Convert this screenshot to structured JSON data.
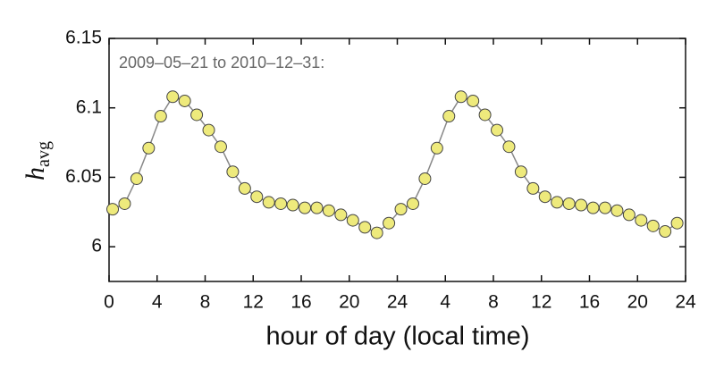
{
  "chart_data": {
    "type": "line",
    "annotation": "2009–05–21 to 2010–12–31:",
    "xlabel": "hour of day (local time)",
    "ylabel": "h",
    "ylabel_sub": "avg",
    "x": [
      0.3,
      1.3,
      2.3,
      3.3,
      4.3,
      5.3,
      6.3,
      7.3,
      8.3,
      9.3,
      10.3,
      11.3,
      12.3,
      13.3,
      14.3,
      15.3,
      16.3,
      17.3,
      18.3,
      19.3,
      20.3,
      21.3,
      22.3,
      23.3,
      24.3,
      25.3,
      26.3,
      27.3,
      28.3,
      29.3,
      30.3,
      31.3,
      32.3,
      33.3,
      34.3,
      35.3,
      36.3,
      37.3,
      38.3,
      39.3,
      40.3,
      41.3,
      42.3,
      43.3,
      44.3,
      45.3,
      46.3,
      47.3
    ],
    "values": [
      6.027,
      6.031,
      6.049,
      6.071,
      6.094,
      6.108,
      6.105,
      6.095,
      6.084,
      6.072,
      6.054,
      6.042,
      6.036,
      6.032,
      6.031,
      6.03,
      6.028,
      6.028,
      6.026,
      6.023,
      6.019,
      6.014,
      6.01,
      6.017,
      6.027,
      6.031,
      6.049,
      6.071,
      6.094,
      6.108,
      6.105,
      6.095,
      6.084,
      6.072,
      6.054,
      6.042,
      6.036,
      6.032,
      6.031,
      6.03,
      6.028,
      6.028,
      6.026,
      6.023,
      6.019,
      6.015,
      6.011,
      6.017
    ],
    "color": "#eeea7c",
    "line_color": "#888888",
    "xlim": [
      0,
      48
    ],
    "xticks": [
      0,
      4,
      8,
      12,
      16,
      20,
      24,
      {
        "value": 28,
        "label": "4"
      },
      {
        "value": 32,
        "label": "8"
      },
      {
        "value": 36,
        "label": "12"
      },
      {
        "value": 40,
        "label": "16"
      },
      {
        "value": 44,
        "label": "20"
      },
      {
        "value": 48,
        "label": "24"
      }
    ],
    "ylim": [
      5.975,
      6.15
    ],
    "yticks": [
      6,
      6.05,
      6.1,
      6.15
    ],
    "grid": false
  }
}
